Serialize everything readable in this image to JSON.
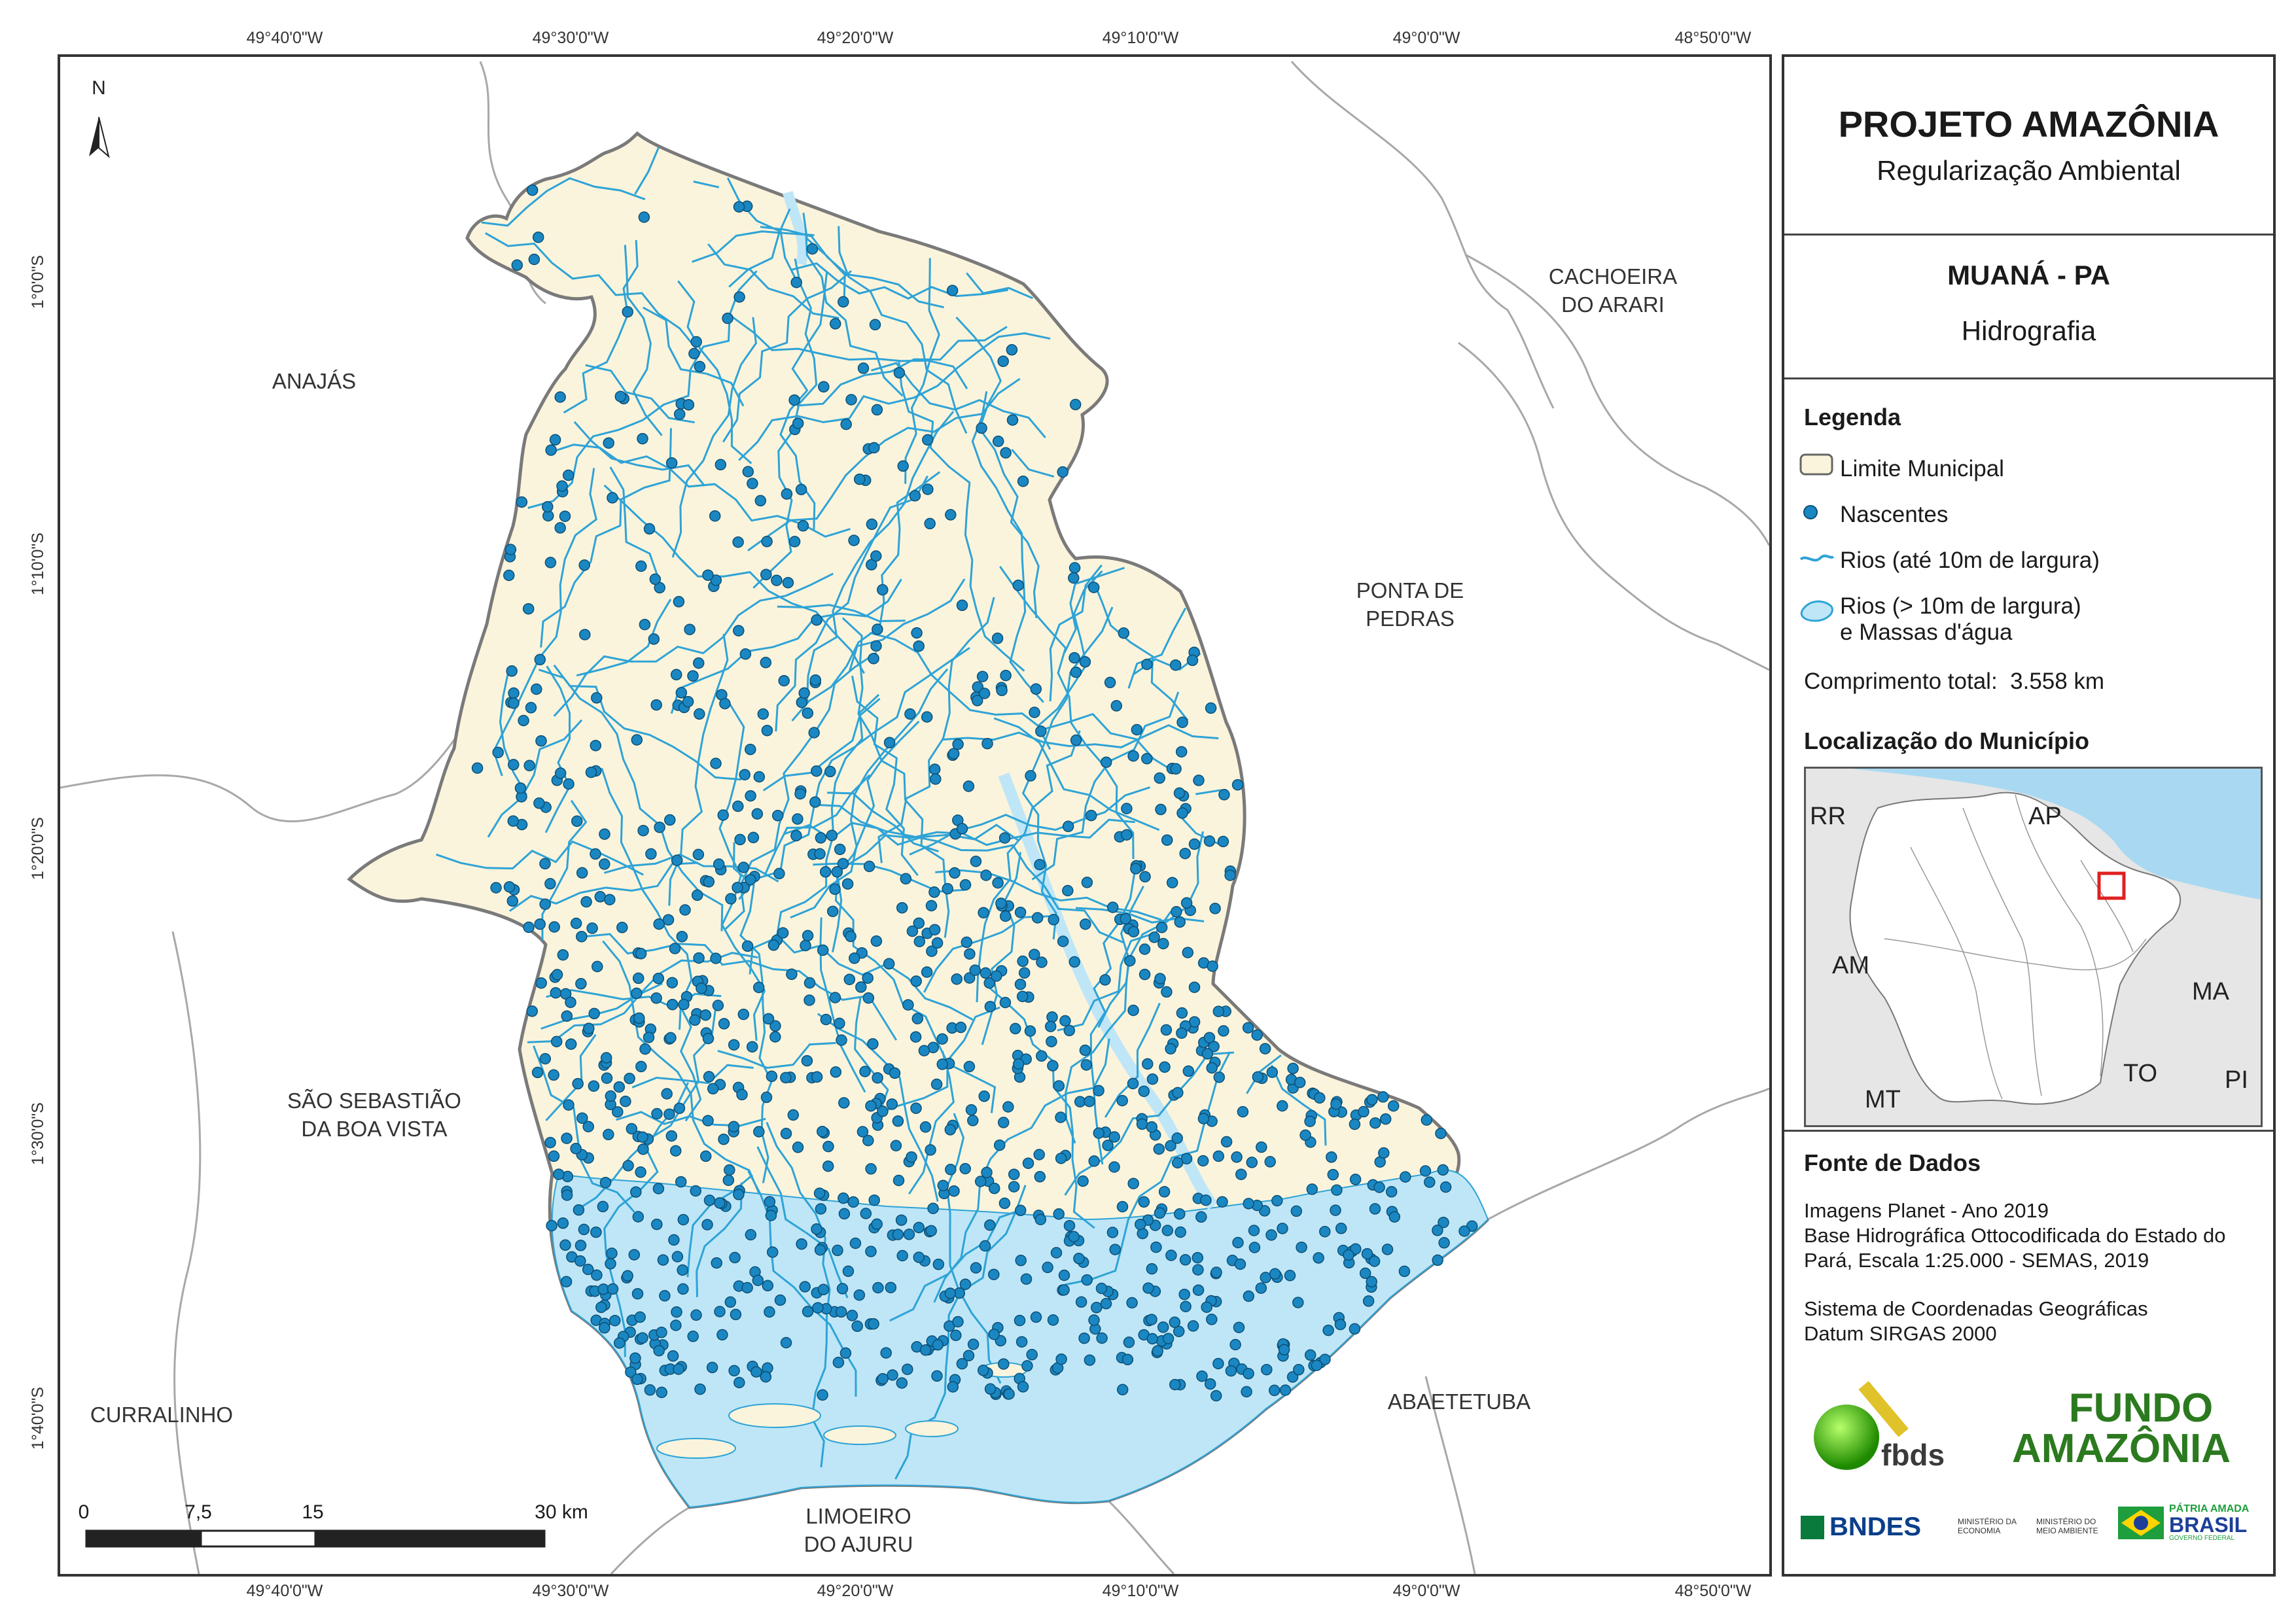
{
  "coordinates": {
    "top": [
      "49°40'0\"W",
      "49°30'0\"W",
      "49°20'0\"W",
      "49°10'0\"W",
      "49°0'0\"W",
      "48°50'0\"W"
    ],
    "bottom": [
      "49°40'0\"W",
      "49°30'0\"W",
      "49°20'0\"W",
      "49°10'0\"W",
      "49°0'0\"W",
      "48°50'0\"W"
    ],
    "left": [
      "1°0'0\"S",
      "1°10'0\"S",
      "1°20'0\"S",
      "1°30'0\"S",
      "1°40'0\"S"
    ]
  },
  "map": {
    "north_label": "N",
    "municipalities": {
      "anajas": "ANAJÁS",
      "cachoeira_1": "CACHOEIRA",
      "cachoeira_2": "DO ARARI",
      "ponta_1": "PONTA DE",
      "ponta_2": "PEDRAS",
      "sao_sebastiao_1": "SÃO SEBASTIÃO",
      "sao_sebastiao_2": "DA BOA VISTA",
      "curralinho": "CURRALINHO",
      "abaetetuba": "ABAETETUBA",
      "limoeiro_1": "LIMOEIRO",
      "limoeiro_2": "DO AJURU"
    },
    "scale": {
      "labels": [
        "0",
        "7,5",
        "15",
        "30 km"
      ]
    },
    "colors": {
      "municipality_fill": "#fbf4dc",
      "water": "#bfe6f7",
      "river": "#2ea3d6",
      "spring": "#1a87c2",
      "boundary": "#7a7a7a"
    }
  },
  "panel": {
    "title": "PROJETO AMAZÔNIA",
    "subtitle": "Regularização Ambiental",
    "municipality": "MUANÁ - PA",
    "theme": "Hidrografia",
    "legend": {
      "heading": "Legenda",
      "items": [
        {
          "label": "Limite Municipal"
        },
        {
          "label": "Nascentes"
        },
        {
          "label": "Rios (até 10m de largura)"
        },
        {
          "label": "Rios (> 10m de largura)",
          "label2": "e Massas d'água"
        }
      ],
      "total_label": "Comprimento total:",
      "total_value": "3.558 km"
    },
    "location": {
      "heading": "Localização do Município",
      "states": [
        "RR",
        "AP",
        "AM",
        "MA",
        "TO",
        "MT",
        "PI"
      ]
    },
    "sources": {
      "heading": "Fonte de Dados",
      "lines": [
        "Imagens Planet - Ano 2019",
        "Base Hidrográfica Ottocodificada do Estado do",
        "Pará, Escala 1:25.000 - SEMAS, 2019",
        "Sistema de Coordenadas Geográficas",
        "Datum SIRGAS 2000"
      ]
    },
    "logos": {
      "fbds": "fbds",
      "fundo_1": "FUNDO",
      "fundo_2": "AMAZÔNIA",
      "bndes": "BNDES",
      "min_economia": "MINISTÉRIO DA ECONOMIA",
      "min_meio_ambiente": "MINISTÉRIO DO MEIO AMBIENTE",
      "patria_1": "PÁTRIA AMADA",
      "patria_2": "BRASIL",
      "governo": "GOVERNO FEDERAL"
    }
  }
}
